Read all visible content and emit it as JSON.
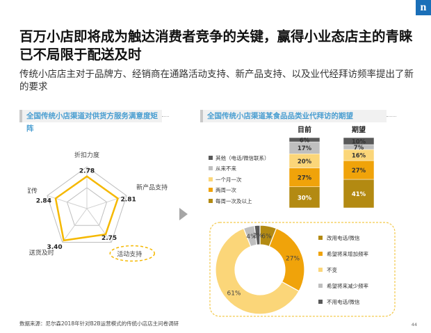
{
  "logo": "n",
  "title": "百万小店即将成为触达消费者竞争的关键，赢得小业态店主的青睐已不局限于配送及时",
  "subtitle": "传统小店店主对于品牌方、经销商在通路活动支持、新产品支持、以及业代经拜访频率提出了新的要求",
  "source": "数据来源：尼尔森2018年针对B2B运营模式的传统小店店主问卷调研",
  "page_number": "44",
  "colors": {
    "accent": "#f5b800",
    "header_text": "#4a9ed1",
    "dark_gold": "#b38a12",
    "orange": "#f0a30a",
    "light_yellow": "#fbd679",
    "grey": "#bfbfbf",
    "dark_grey": "#595959"
  },
  "chart_data": [
    {
      "type": "radar",
      "title": "全国传统小店渠道对供货方服务满意度矩阵",
      "categories": [
        "折扣力度",
        "新产品支持",
        "活动支持",
        "送货及时",
        "品牌宣传"
      ],
      "values": [
        2.78,
        2.81,
        2.75,
        3.4,
        2.84
      ],
      "highlight": "活动支持"
    },
    {
      "type": "bar",
      "stacked": true,
      "percent": true,
      "title": "全国传统小店渠道某食品品类业代拜访的期望",
      "categories": [
        "目前",
        "期望"
      ],
      "series": [
        {
          "name": "每周一次及以上",
          "values": [
            30,
            41
          ],
          "color": "#b38a12"
        },
        {
          "name": "两周一次",
          "values": [
            27,
            27
          ],
          "color": "#f0a30a"
        },
        {
          "name": "一个月一次",
          "values": [
            20,
            16
          ],
          "color": "#fbd679"
        },
        {
          "name": "从来不来",
          "values": [
            17,
            7
          ],
          "color": "#bfbfbf"
        },
        {
          "name": "其他（电话/微信联系）",
          "values": [
            6,
            10
          ],
          "color": "#595959"
        }
      ],
      "value_labels": {
        "目前": [
          "30%",
          "27%",
          "20%",
          "17%",
          "6%"
        ],
        "期望": [
          "41%",
          "27%",
          "16%",
          "7%",
          "10%"
        ]
      }
    },
    {
      "type": "pie",
      "donut": true,
      "slices": [
        {
          "name": "改用电话/微信",
          "value": 6,
          "label": "6%",
          "color": "#b38a12"
        },
        {
          "name": "希望将来增加频率",
          "value": 27,
          "label": "27%",
          "color": "#f0a30a"
        },
        {
          "name": "不变",
          "value": 61,
          "label": "61%",
          "color": "#fbd679"
        },
        {
          "name": "希望将来减少频率",
          "value": 4,
          "label": "4%",
          "color": "#bfbfbf"
        },
        {
          "name": "不用电话/微信",
          "value": 2,
          "label": "2%",
          "color": "#595959"
        }
      ]
    }
  ]
}
